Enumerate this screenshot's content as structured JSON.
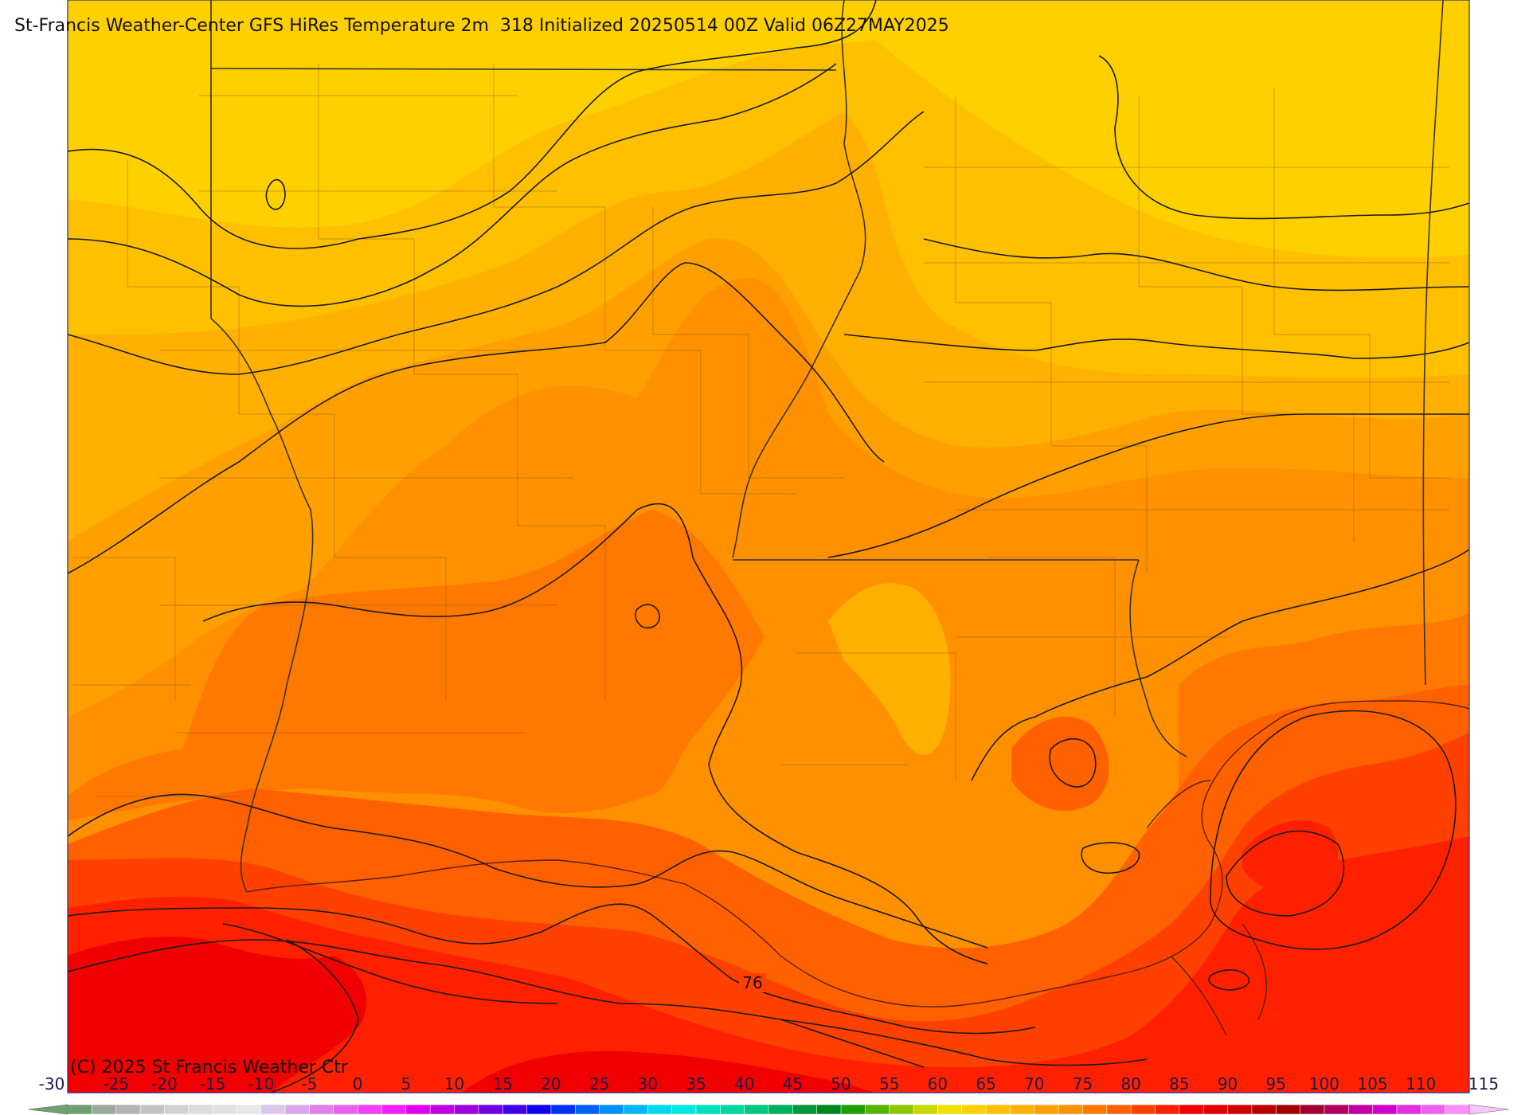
{
  "title": "St-Francis Weather-Center GFS HiRes Temperature 2m  318 Initialized 20250514 00Z Valid 06Z27MAY2025",
  "copyright": "(C) 2025 St Francis Weather Ctr",
  "contour_label": "76",
  "colorbar": {
    "tick_labels": [
      "-30",
      "-25",
      "-20",
      "-15",
      "-10",
      "-5",
      "0",
      "5",
      "10",
      "15",
      "20",
      "25",
      "30",
      "35",
      "40",
      "45",
      "50",
      "55",
      "60",
      "65",
      "70",
      "75",
      "80",
      "85",
      "90",
      "95",
      "100",
      "105",
      "110",
      "115"
    ],
    "min": -30,
    "max": 115,
    "step": 2.5,
    "colors": [
      "#6fa06f",
      "#9aaa9a",
      "#b4b4b4",
      "#c4c4c4",
      "#d2d2d2",
      "#dcdcdc",
      "#e2e2e2",
      "#e8e8e8",
      "#dcc8e8",
      "#d8a8e8",
      "#e080e8",
      "#e860f0",
      "#f040f8",
      "#f020f8",
      "#e000f0",
      "#c000e0",
      "#a000e0",
      "#7000e0",
      "#4000e8",
      "#1000f0",
      "#0030f8",
      "#0060f8",
      "#0090f8",
      "#00b8f8",
      "#00d8f0",
      "#00e8e0",
      "#00e0c0",
      "#00d8a0",
      "#00c880",
      "#00b060",
      "#009838",
      "#008820",
      "#20a000",
      "#58b400",
      "#90c800",
      "#c8d800",
      "#f0e000",
      "#ffd000",
      "#ffc000",
      "#ffb000",
      "#ffa000",
      "#ff9000",
      "#ff7800",
      "#ff6000",
      "#ff4000",
      "#ff2000",
      "#f00000",
      "#e00000",
      "#cc0000",
      "#b80000",
      "#a00000",
      "#a00030",
      "#b00060",
      "#c000a0",
      "#d000c8",
      "#e030e0",
      "#f060f0",
      "#f890f8"
    ],
    "left_arrow_color": "#6fa06f",
    "right_arrow_color": "#f8c8f8"
  },
  "temperature_bands": {
    "band_60": "#ffd000",
    "band_62": "#ffc000",
    "band_65": "#ffb000",
    "band_67": "#ffa000",
    "band_70": "#ff9000",
    "band_72": "#ff7800",
    "band_75": "#ff6000",
    "band_77": "#ff4000",
    "band_80": "#ff2000",
    "band_82": "#f00000"
  }
}
